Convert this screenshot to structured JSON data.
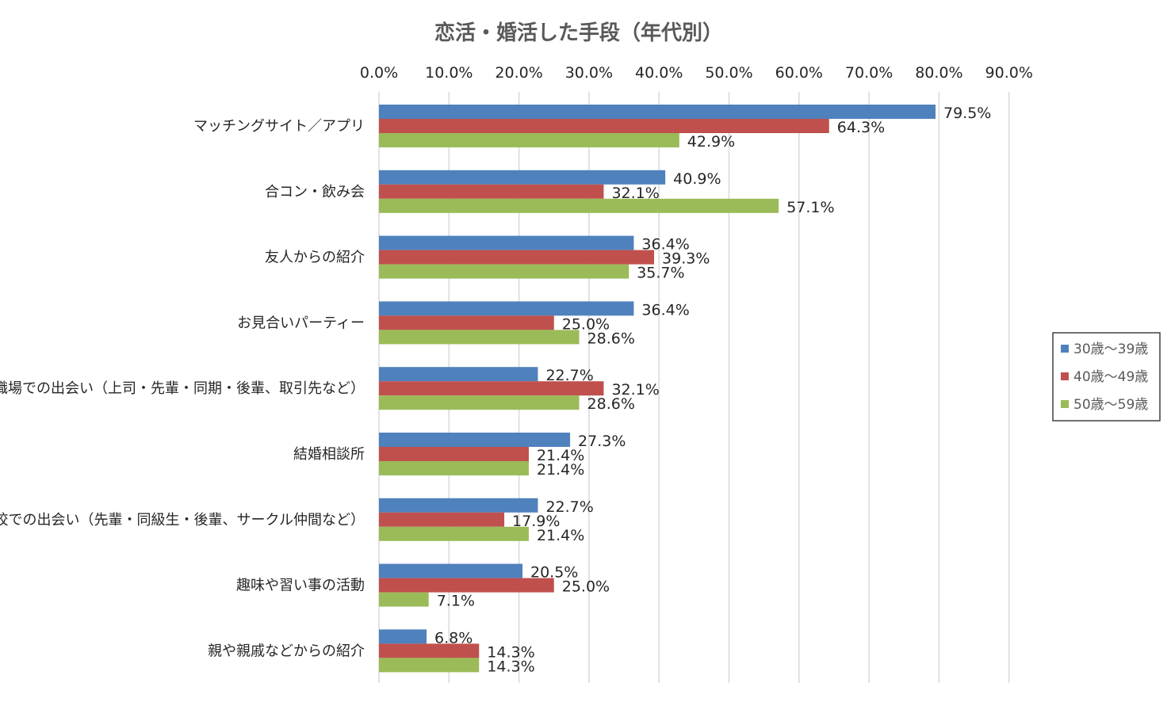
{
  "chart_data": {
    "type": "bar",
    "orientation": "horizontal",
    "title": "恋活・婚活した手段（年代別）",
    "xlabel": "",
    "ylabel": "",
    "xlim": [
      0,
      90
    ],
    "x_ticks": [
      "0.0%",
      "10.0%",
      "20.0%",
      "30.0%",
      "40.0%",
      "50.0%",
      "60.0%",
      "70.0%",
      "80.0%",
      "90.0%"
    ],
    "x_axis_position": "top",
    "grid": true,
    "legend_position": "right",
    "categories": [
      "マッチングサイト／アプリ",
      "合コン・飲み会",
      "友人からの紹介",
      "お見合いパーティー",
      "職場での出会い（上司・先輩・同期・後輩、取引先など）",
      "結婚相談所",
      "学校での出会い（先輩・同級生・後輩、サークル仲間など）",
      "趣味や習い事の活動",
      "親や親戚などからの紹介"
    ],
    "series": [
      {
        "name": "30歳～39歳",
        "color": "#4f81bd",
        "values": [
          79.5,
          40.9,
          36.4,
          36.4,
          22.7,
          27.3,
          22.7,
          20.5,
          6.8
        ],
        "labels": [
          "79.5%",
          "40.9%",
          "36.4%",
          "36.4%",
          "22.7%",
          "27.3%",
          "22.7%",
          "20.5%",
          "6.8%"
        ]
      },
      {
        "name": "40歳～49歳",
        "color": "#c0504d",
        "values": [
          64.3,
          32.1,
          39.3,
          25.0,
          32.1,
          21.4,
          17.9,
          25.0,
          14.3
        ],
        "labels": [
          "64.3%",
          "32.1%",
          "39.3%",
          "25.0%",
          "32.1%",
          "21.4%",
          "17.9%",
          "25.0%",
          "14.3%"
        ]
      },
      {
        "name": "50歳～59歳",
        "color": "#9bbb59",
        "values": [
          42.9,
          57.1,
          35.7,
          28.6,
          28.6,
          21.4,
          21.4,
          7.1,
          14.3
        ],
        "labels": [
          "42.9%",
          "57.1%",
          "35.7%",
          "28.6%",
          "28.6%",
          "21.4%",
          "21.4%",
          "7.1%",
          "14.3%"
        ]
      }
    ]
  }
}
